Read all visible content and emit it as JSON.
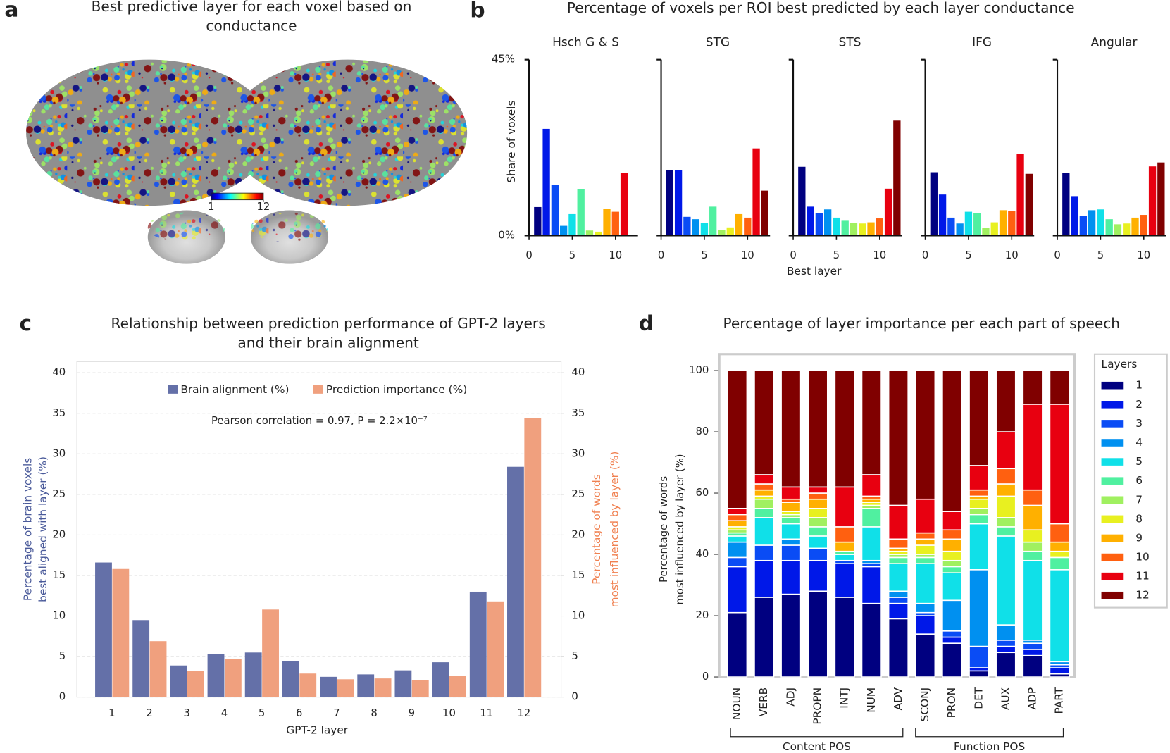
{
  "chart_data": [
    {
      "type": "brain_map",
      "letter": "a",
      "title": [
        "Best predictive layer for each voxel based on",
        "conductance"
      ],
      "clim": [
        1,
        12
      ],
      "colorbar_ticks": [
        1,
        12
      ]
    },
    {
      "type": "bar_grid",
      "letter": "b",
      "title": "Percentage of voxels per ROI best predicted by each layer conductance",
      "xlabel": "Best layer",
      "ylabel": "Share of voxels",
      "x": [
        1,
        2,
        3,
        4,
        5,
        6,
        7,
        8,
        9,
        10,
        11,
        12
      ],
      "xlim": [
        0,
        12.6
      ],
      "xticks": [
        0,
        5,
        10
      ],
      "ylim": [
        0,
        45
      ],
      "yticks": [
        {
          "value": 0,
          "label": "0%"
        },
        {
          "value": 45,
          "label": "45%"
        }
      ],
      "colors": [
        "#000080",
        "#0018e8",
        "#0a4cf5",
        "#0090f0",
        "#10e0e8",
        "#50f0a0",
        "#a0f060",
        "#e8f020",
        "#ffb000",
        "#ff6010",
        "#e80010",
        "#800000"
      ],
      "series": [
        {
          "name": "Hsch G & S",
          "values": [
            7.3,
            27.3,
            13,
            2.5,
            5.5,
            11.8,
            1.3,
            1,
            6.9,
            6.1,
            16,
            0.2
          ]
        },
        {
          "name": "STG",
          "values": [
            16.8,
            16.8,
            4.8,
            4.2,
            3.2,
            7.4,
            1.5,
            2.1,
            5.5,
            4.6,
            22.3,
            11.5
          ]
        },
        {
          "name": "STS",
          "values": [
            17.6,
            7.4,
            5.7,
            6.7,
            4.6,
            3.8,
            3.2,
            3.1,
            3.4,
            4.4,
            12,
            29.4
          ]
        },
        {
          "name": "IFG",
          "values": [
            16.2,
            10.5,
            4.6,
            3.1,
            6.1,
            5.7,
            1.9,
            3.4,
            6.5,
            6.3,
            20.8,
            15.8
          ]
        },
        {
          "name": "Angular",
          "values": [
            16,
            10.1,
            5,
            6.5,
            6.7,
            4.2,
            2.9,
            3.1,
            4.6,
            5.3,
            17.7,
            18.7
          ]
        }
      ]
    },
    {
      "type": "grouped_bar",
      "letter": "c",
      "title": [
        "Relationship between prediction performance of GPT-2 layers",
        "and their brain alignment"
      ],
      "categories": [
        "1",
        "2",
        "3",
        "4",
        "5",
        "6",
        "7",
        "8",
        "9",
        "10",
        "11",
        "12"
      ],
      "xlabel": "GPT-2 layer",
      "ylabel": [
        "Percentage of brain voxels",
        "best aligned with layer (%)"
      ],
      "ylabel_color": "#4a5a9a",
      "y2label": [
        "Percentage of words",
        "most influenced by layer (%)"
      ],
      "y2label_color": "#f08050",
      "ylim": [
        0,
        40
      ],
      "yticks": [
        0,
        5,
        10,
        15,
        20,
        25,
        30,
        35,
        40
      ],
      "y2lim": [
        0,
        40
      ],
      "y2ticks": [
        0,
        5,
        10,
        15,
        20,
        25,
        30,
        35,
        40
      ],
      "grid": true,
      "legend": "upper center",
      "annotation": "Pearson correlation = 0.97, P = 2.2×10⁻⁷",
      "series": [
        {
          "name": "Brain alignment (%)",
          "color": "#6470a8",
          "values": [
            16.6,
            9.5,
            3.9,
            5.3,
            5.5,
            4.4,
            2.5,
            2.8,
            3.3,
            4.3,
            13.0,
            28.4
          ]
        },
        {
          "name": "Prediction importance (%)",
          "color": "#f0a07e",
          "axis": "y2",
          "values": [
            15.8,
            6.9,
            3.2,
            4.7,
            10.8,
            2.9,
            2.2,
            2.3,
            2.1,
            2.6,
            11.8,
            34.4
          ]
        }
      ]
    },
    {
      "type": "stacked_bar",
      "letter": "d",
      "title": "Percentage of layer importance per each part of speech",
      "ylabel": [
        "Percentage of words",
        "most influenced by layer (%)"
      ],
      "categories": [
        "NOUN",
        "VERB",
        "ADJ",
        "PROPN",
        "INTJ",
        "NUM",
        "ADV",
        "SCONJ",
        "PRON",
        "DET",
        "AUX",
        "ADP",
        "PART"
      ],
      "group_labels": [
        "Content POS",
        "Function POS"
      ],
      "ylim": [
        0,
        100
      ],
      "yticks": [
        0,
        20,
        40,
        60,
        80,
        100
      ],
      "legend": "right",
      "legend_title": "Layers",
      "series": [
        {
          "name": "1",
          "color": "#000080",
          "values": [
            21,
            26,
            27,
            28,
            26,
            24,
            19,
            14,
            11,
            2,
            8,
            7,
            1
          ]
        },
        {
          "name": "2",
          "color": "#0018e8",
          "values": [
            15,
            12,
            11,
            10,
            11,
            12,
            5,
            6,
            2,
            1,
            2,
            2,
            2
          ]
        },
        {
          "name": "3",
          "color": "#0a4cf5",
          "values": [
            3,
            5,
            5,
            4,
            1,
            1,
            2,
            1,
            2,
            7,
            2,
            2,
            1
          ]
        },
        {
          "name": "4",
          "color": "#0090f0",
          "values": [
            5,
            0,
            2,
            0,
            0,
            1,
            2,
            3,
            10,
            25,
            5,
            1,
            1
          ]
        },
        {
          "name": "5",
          "color": "#10e0e8",
          "values": [
            2,
            9,
            5,
            4,
            2,
            11,
            9,
            13,
            9,
            15,
            29,
            26,
            30
          ]
        },
        {
          "name": "6",
          "color": "#50f0a0",
          "values": [
            1,
            3,
            2,
            3,
            1,
            6,
            2,
            2,
            2,
            3,
            3,
            3,
            4
          ]
        },
        {
          "name": "7",
          "color": "#a0f060",
          "values": [
            1,
            3,
            1,
            3,
            0,
            1,
            1,
            1,
            2,
            2,
            3,
            3,
            0
          ]
        },
        {
          "name": "8",
          "color": "#e8f020",
          "values": [
            1,
            1,
            1,
            3,
            0,
            1,
            1,
            3,
            3,
            3,
            7,
            4,
            2
          ]
        },
        {
          "name": "9",
          "color": "#ffb000",
          "values": [
            2,
            2,
            3,
            3,
            3,
            1,
            1,
            2,
            4,
            1,
            4,
            8,
            3
          ]
        },
        {
          "name": "10",
          "color": "#ff6010",
          "values": [
            2,
            2,
            1,
            2,
            5,
            1,
            3,
            2,
            3,
            2,
            5,
            5,
            6
          ]
        },
        {
          "name": "11",
          "color": "#e80010",
          "values": [
            2,
            3,
            4,
            2,
            13,
            7,
            11,
            11,
            6,
            8,
            12,
            28,
            39
          ]
        },
        {
          "name": "12",
          "color": "#800000",
          "values": [
            45,
            34,
            38,
            38,
            38,
            34,
            44,
            42,
            46,
            31,
            20,
            11,
            11
          ]
        }
      ]
    }
  ]
}
